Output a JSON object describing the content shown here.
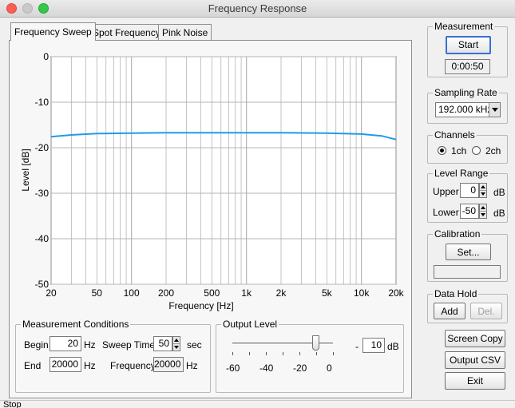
{
  "window": {
    "title": "Frequency Response"
  },
  "tabs": [
    {
      "label": "Frequency Sweep",
      "active": true
    },
    {
      "label": "Spot Frequency",
      "active": false
    },
    {
      "label": "Pink Noise",
      "active": false
    }
  ],
  "chart_data": {
    "type": "line",
    "xlabel": "Frequency [Hz]",
    "ylabel": "Level [dB]",
    "x_scale": "log",
    "xlim": [
      20,
      20000
    ],
    "ylim": [
      -50,
      0
    ],
    "x_ticks": [
      {
        "value": 20,
        "label": "20"
      },
      {
        "value": 50,
        "label": "50"
      },
      {
        "value": 100,
        "label": "100"
      },
      {
        "value": 200,
        "label": "200"
      },
      {
        "value": 500,
        "label": "500"
      },
      {
        "value": 1000,
        "label": "1k"
      },
      {
        "value": 2000,
        "label": "2k"
      },
      {
        "value": 5000,
        "label": "5k"
      },
      {
        "value": 10000,
        "label": "10k"
      },
      {
        "value": 20000,
        "label": "20k"
      }
    ],
    "y_ticks": [
      {
        "value": 0,
        "label": "0"
      },
      {
        "value": -10,
        "label": "-10"
      },
      {
        "value": -20,
        "label": "-20"
      },
      {
        "value": -30,
        "label": "-30"
      },
      {
        "value": -40,
        "label": "-40"
      },
      {
        "value": -50,
        "label": "-50"
      }
    ],
    "grid": true,
    "series": [
      {
        "color": "#1e9be8",
        "x": [
          20,
          30,
          50,
          100,
          200,
          500,
          1000,
          2000,
          5000,
          10000,
          15000,
          20000
        ],
        "y": [
          -17.6,
          -17.2,
          -16.9,
          -16.8,
          -16.7,
          -16.7,
          -16.7,
          -16.7,
          -16.8,
          -17.0,
          -17.4,
          -18.2
        ]
      }
    ]
  },
  "measurement_conditions": {
    "title": "Measurement Conditions",
    "begin_label": "Begin",
    "begin_value": "20",
    "begin_unit": "Hz",
    "end_label": "End",
    "end_value": "20000",
    "end_unit": "Hz",
    "sweep_time_label": "Sweep Time",
    "sweep_time_value": "50",
    "sweep_time_unit": "sec",
    "frequency_label": "Frequency",
    "frequency_value": "20000",
    "frequency_unit": "Hz"
  },
  "output_level": {
    "title": "Output Level",
    "slider_level_db": -10,
    "slider_min": -60,
    "slider_max": 0,
    "scale_labels": [
      "-60",
      "-40",
      "-20",
      "0"
    ],
    "prefix": "-",
    "value": "10",
    "unit": "dB"
  },
  "measurement": {
    "title": "Measurement",
    "start_label": "Start",
    "elapsed": "0:00:50"
  },
  "sampling_rate": {
    "title": "Sampling Rate",
    "selected": "192.000 kHz"
  },
  "channels": {
    "title": "Channels",
    "opt1": "1ch",
    "opt2": "2ch",
    "selected": "1ch"
  },
  "level_range": {
    "title": "Level Range",
    "upper_label": "Upper",
    "upper_value": "0",
    "lower_label": "Lower",
    "lower_value": "-50",
    "unit": "dB"
  },
  "calibration": {
    "title": "Calibration",
    "set_label": "Set...",
    "status": ""
  },
  "data_hold": {
    "title": "Data Hold",
    "add_label": "Add",
    "del_label": "Del."
  },
  "buttons": {
    "screen_copy": "Screen Copy",
    "output_csv": "Output CSV",
    "exit": "Exit"
  },
  "status": {
    "text": "Stop"
  },
  "colors": {
    "curve": "#1e9be8",
    "plot_background": "#ffffff",
    "grid": "#b4b4b4"
  }
}
